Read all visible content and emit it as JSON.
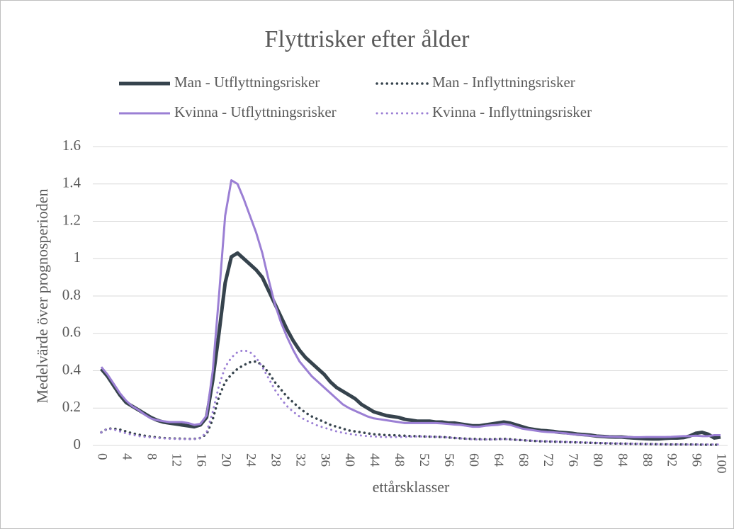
{
  "chart_data": {
    "type": "line",
    "title": "Flyttrisker efter ålder",
    "x_label": "ettårsklasser",
    "y_label": "Medelvärde över prognosperioden",
    "x": [
      0,
      1,
      2,
      3,
      4,
      5,
      6,
      7,
      8,
      9,
      10,
      11,
      12,
      13,
      14,
      15,
      16,
      17,
      18,
      19,
      20,
      21,
      22,
      23,
      24,
      25,
      26,
      27,
      28,
      29,
      30,
      31,
      32,
      33,
      34,
      35,
      36,
      37,
      38,
      39,
      40,
      41,
      42,
      43,
      44,
      45,
      46,
      47,
      48,
      49,
      50,
      51,
      52,
      53,
      54,
      55,
      56,
      57,
      58,
      59,
      60,
      61,
      62,
      63,
      64,
      65,
      66,
      67,
      68,
      69,
      70,
      71,
      72,
      73,
      74,
      75,
      76,
      77,
      78,
      79,
      80,
      81,
      82,
      83,
      84,
      85,
      86,
      87,
      88,
      89,
      90,
      91,
      92,
      93,
      94,
      95,
      96,
      97,
      98,
      99,
      100
    ],
    "xlim": [
      0,
      100
    ],
    "xticks": [
      0,
      4,
      8,
      12,
      16,
      20,
      24,
      28,
      32,
      36,
      40,
      44,
      48,
      52,
      56,
      60,
      64,
      68,
      72,
      76,
      80,
      84,
      88,
      92,
      96,
      100
    ],
    "ylim": [
      0,
      1.6
    ],
    "yticks": [
      0,
      0.2,
      0.4,
      0.6,
      0.8,
      1,
      1.2,
      1.4,
      1.6
    ],
    "grid": true,
    "legend": "top",
    "series": [
      {
        "name": "Man - Utflyttningsrisker",
        "color": "#36434d",
        "dash": "solid",
        "width": 5,
        "values": [
          0.41,
          0.37,
          0.32,
          0.27,
          0.23,
          0.21,
          0.19,
          0.17,
          0.15,
          0.135,
          0.125,
          0.12,
          0.115,
          0.11,
          0.105,
          0.1,
          0.11,
          0.15,
          0.35,
          0.6,
          0.87,
          1.01,
          1.03,
          1.0,
          0.97,
          0.94,
          0.9,
          0.83,
          0.76,
          0.69,
          0.62,
          0.56,
          0.51,
          0.47,
          0.44,
          0.41,
          0.38,
          0.34,
          0.31,
          0.29,
          0.27,
          0.25,
          0.22,
          0.2,
          0.18,
          0.17,
          0.16,
          0.155,
          0.15,
          0.14,
          0.135,
          0.13,
          0.13,
          0.13,
          0.125,
          0.125,
          0.12,
          0.12,
          0.115,
          0.11,
          0.105,
          0.105,
          0.11,
          0.115,
          0.12,
          0.125,
          0.12,
          0.11,
          0.1,
          0.09,
          0.085,
          0.08,
          0.078,
          0.075,
          0.07,
          0.068,
          0.065,
          0.06,
          0.058,
          0.055,
          0.05,
          0.048,
          0.046,
          0.045,
          0.045,
          0.042,
          0.04,
          0.038,
          0.036,
          0.035,
          0.035,
          0.038,
          0.04,
          0.04,
          0.042,
          0.05,
          0.065,
          0.07,
          0.06,
          0.04,
          0.045
        ]
      },
      {
        "name": "Man - Inflyttningsrisker",
        "color": "#36434d",
        "dash": "dotted",
        "width": 3.5,
        "values": [
          0.07,
          0.09,
          0.09,
          0.085,
          0.075,
          0.065,
          0.058,
          0.052,
          0.047,
          0.043,
          0.04,
          0.038,
          0.037,
          0.036,
          0.035,
          0.035,
          0.04,
          0.06,
          0.14,
          0.26,
          0.34,
          0.38,
          0.41,
          0.43,
          0.445,
          0.45,
          0.43,
          0.39,
          0.34,
          0.3,
          0.26,
          0.23,
          0.2,
          0.175,
          0.155,
          0.14,
          0.125,
          0.11,
          0.1,
          0.09,
          0.08,
          0.075,
          0.07,
          0.065,
          0.06,
          0.058,
          0.055,
          0.055,
          0.053,
          0.052,
          0.05,
          0.05,
          0.048,
          0.047,
          0.046,
          0.045,
          0.043,
          0.04,
          0.038,
          0.036,
          0.035,
          0.034,
          0.033,
          0.033,
          0.034,
          0.035,
          0.033,
          0.03,
          0.028,
          0.026,
          0.024,
          0.022,
          0.021,
          0.02,
          0.019,
          0.018,
          0.017,
          0.016,
          0.015,
          0.014,
          0.013,
          0.012,
          0.011,
          0.01,
          0.01,
          0.009,
          0.008,
          0.008,
          0.007,
          0.007,
          0.006,
          0.006,
          0.005,
          0.005,
          0.005,
          0.005,
          0.005,
          0.004,
          0.004,
          0.004,
          0.004
        ]
      },
      {
        "name": "Kvinna - Utflyttningsrisker",
        "color": "#9b7fd4",
        "dash": "solid",
        "width": 3,
        "values": [
          0.42,
          0.38,
          0.33,
          0.28,
          0.24,
          0.21,
          0.19,
          0.165,
          0.145,
          0.135,
          0.13,
          0.125,
          0.125,
          0.125,
          0.12,
          0.11,
          0.115,
          0.16,
          0.4,
          0.8,
          1.23,
          1.42,
          1.4,
          1.32,
          1.23,
          1.14,
          1.03,
          0.89,
          0.76,
          0.66,
          0.58,
          0.51,
          0.45,
          0.41,
          0.37,
          0.34,
          0.31,
          0.28,
          0.25,
          0.22,
          0.2,
          0.185,
          0.17,
          0.155,
          0.145,
          0.14,
          0.135,
          0.13,
          0.125,
          0.12,
          0.12,
          0.12,
          0.12,
          0.12,
          0.12,
          0.118,
          0.115,
          0.112,
          0.11,
          0.105,
          0.1,
          0.1,
          0.105,
          0.108,
          0.11,
          0.115,
          0.11,
          0.1,
          0.09,
          0.085,
          0.08,
          0.075,
          0.072,
          0.07,
          0.068,
          0.065,
          0.06,
          0.058,
          0.055,
          0.052,
          0.05,
          0.048,
          0.047,
          0.046,
          0.045,
          0.045,
          0.044,
          0.044,
          0.045,
          0.045,
          0.045,
          0.045,
          0.046,
          0.048,
          0.05,
          0.05,
          0.052,
          0.05,
          0.05,
          0.055,
          0.055
        ]
      },
      {
        "name": "Kvinna - Inflyttningsrisker",
        "color": "#9b7fd4",
        "dash": "dotted",
        "width": 3,
        "values": [
          0.07,
          0.09,
          0.085,
          0.075,
          0.065,
          0.057,
          0.05,
          0.046,
          0.043,
          0.04,
          0.038,
          0.036,
          0.035,
          0.034,
          0.034,
          0.034,
          0.04,
          0.07,
          0.18,
          0.32,
          0.42,
          0.47,
          0.5,
          0.51,
          0.5,
          0.47,
          0.42,
          0.36,
          0.3,
          0.25,
          0.21,
          0.18,
          0.155,
          0.135,
          0.12,
          0.105,
          0.095,
          0.085,
          0.075,
          0.068,
          0.062,
          0.057,
          0.053,
          0.05,
          0.048,
          0.046,
          0.045,
          0.045,
          0.045,
          0.046,
          0.047,
          0.048,
          0.048,
          0.047,
          0.046,
          0.045,
          0.043,
          0.04,
          0.038,
          0.035,
          0.033,
          0.032,
          0.032,
          0.032,
          0.033,
          0.034,
          0.032,
          0.03,
          0.028,
          0.026,
          0.025,
          0.023,
          0.022,
          0.021,
          0.02,
          0.019,
          0.018,
          0.017,
          0.016,
          0.015,
          0.014,
          0.013,
          0.012,
          0.011,
          0.01,
          0.01,
          0.009,
          0.009,
          0.008,
          0.008,
          0.007,
          0.007,
          0.006,
          0.006,
          0.006,
          0.005,
          0.005,
          0.005,
          0.005,
          0.005,
          0.005
        ]
      }
    ]
  }
}
